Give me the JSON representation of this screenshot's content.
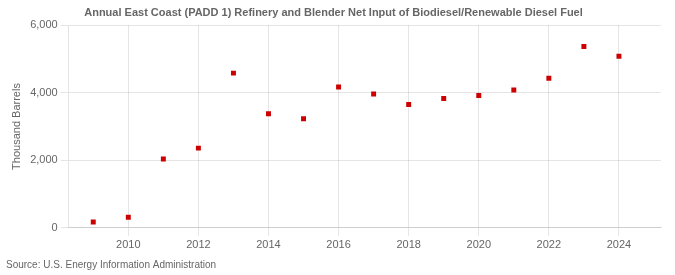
{
  "chart_data": {
    "type": "scatter",
    "title": "Annual East Coast (PADD 1) Refinery and Blender Net Input of Biodiesel/Renewable Diesel Fuel",
    "y_label": "Thousand Barrels",
    "annotation": "Source: U.S. Energy Information Administration",
    "x": [
      2009,
      2010,
      2011,
      2012,
      2013,
      2014,
      2015,
      2016,
      2017,
      2018,
      2019,
      2020,
      2021,
      2022,
      2023,
      2024
    ],
    "values": [
      170,
      310,
      2040,
      2360,
      4580,
      3380,
      3230,
      4170,
      3960,
      3650,
      3830,
      3920,
      4080,
      4430,
      5370,
      5080
    ],
    "color": "#cc0000",
    "marker": "square",
    "xlim": [
      2008.3,
      2025.2
    ],
    "xticks": [
      2010,
      2012,
      2014,
      2016,
      2018,
      2020,
      2022,
      2024
    ],
    "ylim": [
      0,
      6000
    ],
    "yticks": [
      0,
      {
        "value": 2000,
        "label": "2,000"
      },
      {
        "value": 4000,
        "label": "4,000"
      },
      {
        "value": 6000,
        "label": "6,000"
      }
    ],
    "grid": true
  }
}
